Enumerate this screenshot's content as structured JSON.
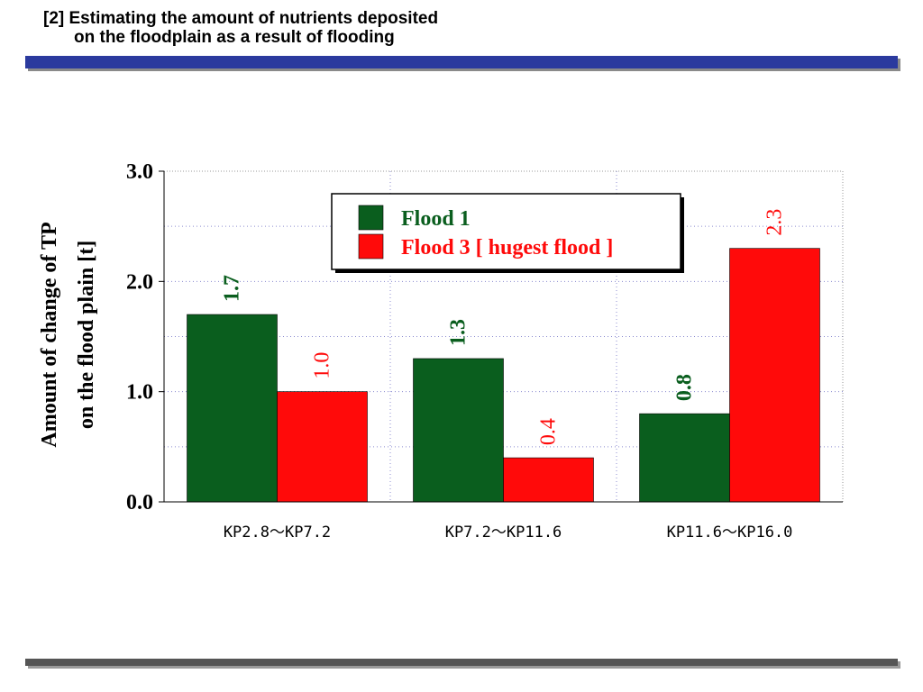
{
  "header": {
    "title_line1": "[2] Estimating the amount of nutrients deposited",
    "title_line2": "on the floodplain as a result of flooding"
  },
  "chart_data": {
    "type": "bar",
    "ylabel_line1": "Amount of change of TP",
    "ylabel_line2": "on the flood plain [t]",
    "categories": [
      "KP2.8～KP7.2",
      "KP7.2～KP11.6",
      "KP11.6～KP16.0"
    ],
    "series": [
      {
        "name": "Flood 1",
        "values": [
          1.7,
          1.3,
          0.8
        ],
        "color": "#0a5e1e",
        "labels": [
          "1.7",
          "1.3",
          "0.8"
        ]
      },
      {
        "name": "Flood 3 [ hugest flood ]",
        "values": [
          1.0,
          0.4,
          2.3
        ],
        "color": "#ff0a0a",
        "labels": [
          "1.0",
          "0.4",
          "2.3"
        ]
      }
    ],
    "ylim": [
      0,
      3
    ],
    "yticks": [
      "0.0",
      "1.0",
      "2.0",
      "3.0"
    ],
    "grid": true,
    "legend_position": "top-right"
  }
}
